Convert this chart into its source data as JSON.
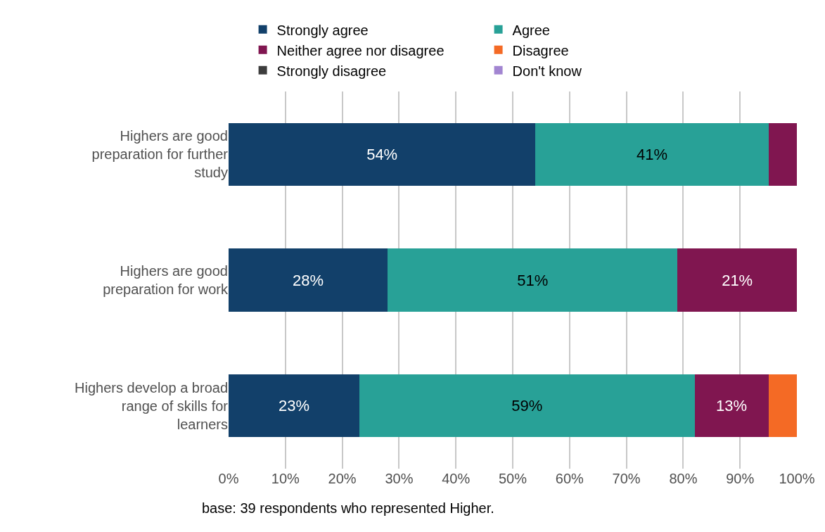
{
  "chart_data": {
    "type": "bar",
    "orientation": "horizontal",
    "stacked": true,
    "categories": [
      "Highers are good preparation for further study",
      "Highers are good preparation for work",
      "Highers develop a broad range of skills for learners"
    ],
    "series": [
      {
        "name": "Strongly agree",
        "color": "#12406a",
        "values": [
          54,
          28,
          23
        ],
        "value_labels": [
          "54%",
          "28%",
          "23%"
        ]
      },
      {
        "name": "Agree",
        "color": "#28a197",
        "values": [
          41,
          51,
          59
        ],
        "value_labels": [
          "41%",
          "51%",
          "59%"
        ]
      },
      {
        "name": "Neither agree nor disagree",
        "color": "#801650",
        "values": [
          5,
          21,
          13
        ],
        "value_labels": [
          null,
          "21%",
          "13%"
        ]
      },
      {
        "name": "Disagree",
        "color": "#f46a25",
        "values": [
          null,
          null,
          5
        ],
        "value_labels": [
          null,
          null,
          null
        ]
      },
      {
        "name": "Strongly disagree",
        "color": "#3d3d3d",
        "values": [
          null,
          null,
          null
        ]
      },
      {
        "name": "Don't know",
        "color": "#a285d1",
        "values": [
          null,
          null,
          null
        ]
      }
    ],
    "xlim": [
      0,
      100
    ],
    "xticks": [
      {
        "value": 0,
        "label": "0%"
      },
      {
        "value": 10,
        "label": "10%"
      },
      {
        "value": 20,
        "label": "20%"
      },
      {
        "value": 30,
        "label": "30%"
      },
      {
        "value": 40,
        "label": "40%"
      },
      {
        "value": 50,
        "label": "50%"
      },
      {
        "value": 60,
        "label": "60%"
      },
      {
        "value": 70,
        "label": "70%"
      },
      {
        "value": 80,
        "label": "80%"
      },
      {
        "value": 90,
        "label": "90%"
      },
      {
        "value": 100,
        "label": "100%"
      }
    ],
    "grid": "x",
    "legend": "top",
    "annotations": [
      "base: 39 respondents who represented Higher."
    ]
  }
}
